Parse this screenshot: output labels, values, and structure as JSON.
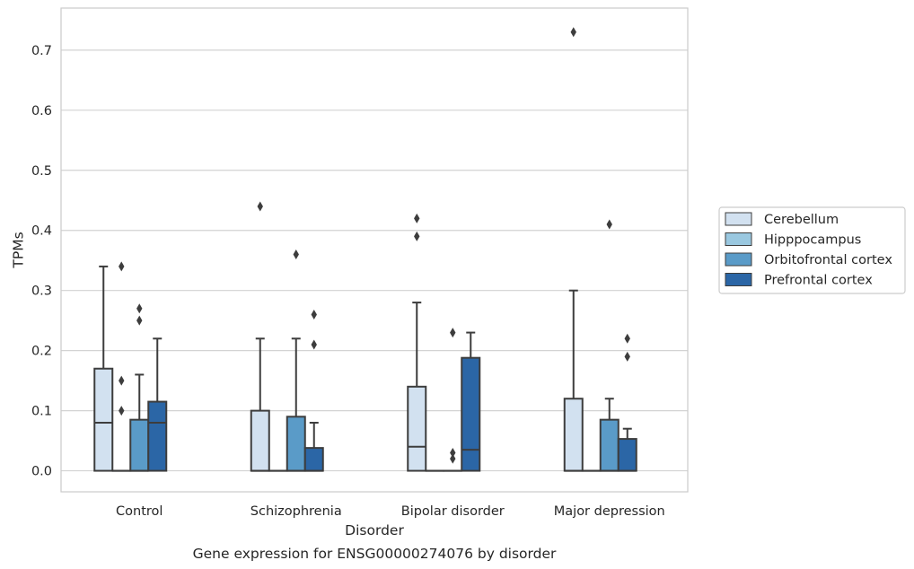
{
  "chart_data": {
    "type": "box",
    "title": "",
    "caption": "Gene expression for ENSG00000274076 by disorder",
    "xlabel": "Disorder",
    "ylabel": "TPMs",
    "ylim": [
      -0.035,
      0.77
    ],
    "yticks": [
      0.0,
      0.1,
      0.2,
      0.3,
      0.4,
      0.5,
      0.6,
      0.7
    ],
    "ytick_labels": [
      "0.0",
      "0.1",
      "0.2",
      "0.3",
      "0.4",
      "0.5",
      "0.6",
      "0.7"
    ],
    "grid": "horizontal",
    "legend_position": "right",
    "categories": [
      "Control",
      "Schizophrenia",
      "Bipolar disorder",
      "Major depression"
    ],
    "series": [
      {
        "name": "Cerebellum",
        "color": "#d2e1f0",
        "boxes": [
          {
            "q1": 0.0,
            "median": 0.08,
            "q3": 0.17,
            "whislo": 0.0,
            "whishi": 0.34,
            "fliers": []
          },
          {
            "q1": 0.0,
            "median": 0.0,
            "q3": 0.1,
            "whislo": 0.0,
            "whishi": 0.22,
            "fliers": [
              0.44
            ]
          },
          {
            "q1": 0.0,
            "median": 0.04,
            "q3": 0.14,
            "whislo": 0.0,
            "whishi": 0.28,
            "fliers": [
              0.39,
              0.42
            ]
          },
          {
            "q1": 0.0,
            "median": 0.0,
            "q3": 0.12,
            "whislo": 0.0,
            "whishi": 0.3,
            "fliers": [
              0.73
            ]
          }
        ]
      },
      {
        "name": "Hipppocampus",
        "color": "#9ac8e0",
        "boxes": [
          {
            "q1": 0.0,
            "median": 0.0,
            "q3": 0.0,
            "whislo": 0.0,
            "whishi": 0.0,
            "fliers": [
              0.1,
              0.15,
              0.34
            ]
          },
          {
            "q1": 0.0,
            "median": 0.0,
            "q3": 0.0,
            "whislo": 0.0,
            "whishi": 0.0,
            "fliers": []
          },
          {
            "q1": 0.0,
            "median": 0.0,
            "q3": 0.0,
            "whislo": 0.0,
            "whishi": 0.0,
            "fliers": []
          },
          {
            "q1": 0.0,
            "median": 0.0,
            "q3": 0.0,
            "whislo": 0.0,
            "whishi": 0.0,
            "fliers": []
          }
        ]
      },
      {
        "name": "Orbitofrontal cortex",
        "color": "#5a9bc8",
        "boxes": [
          {
            "q1": 0.0,
            "median": 0.0,
            "q3": 0.085,
            "whislo": 0.0,
            "whishi": 0.16,
            "fliers": [
              0.25,
              0.27
            ]
          },
          {
            "q1": 0.0,
            "median": 0.0,
            "q3": 0.09,
            "whislo": 0.0,
            "whishi": 0.22,
            "fliers": [
              0.36
            ]
          },
          {
            "q1": 0.0,
            "median": 0.0,
            "q3": 0.0,
            "whislo": 0.0,
            "whishi": 0.0,
            "fliers": [
              0.02,
              0.03,
              0.23
            ]
          },
          {
            "q1": 0.0,
            "median": 0.0,
            "q3": 0.085,
            "whislo": 0.0,
            "whishi": 0.12,
            "fliers": [
              0.41
            ]
          }
        ]
      },
      {
        "name": "Prefrontal cortex",
        "color": "#2b66a6",
        "boxes": [
          {
            "q1": 0.0,
            "median": 0.08,
            "q3": 0.115,
            "whislo": 0.0,
            "whishi": 0.22,
            "fliers": []
          },
          {
            "q1": 0.0,
            "median": 0.0,
            "q3": 0.038,
            "whislo": 0.0,
            "whishi": 0.08,
            "fliers": [
              0.21,
              0.26
            ]
          },
          {
            "q1": 0.0,
            "median": 0.035,
            "q3": 0.188,
            "whislo": 0.0,
            "whishi": 0.23,
            "fliers": []
          },
          {
            "q1": 0.0,
            "median": 0.0,
            "q3": 0.053,
            "whislo": 0.0,
            "whishi": 0.07,
            "fliers": [
              0.19,
              0.22
            ]
          }
        ]
      }
    ]
  }
}
